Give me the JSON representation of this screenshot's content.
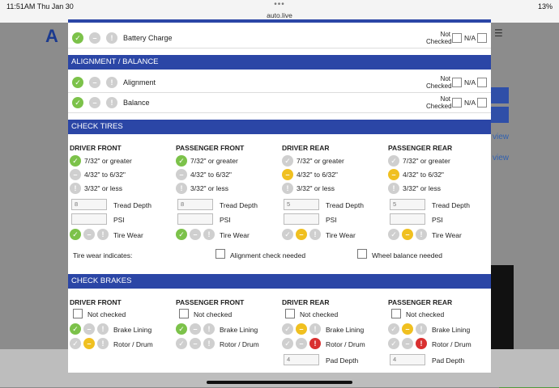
{
  "status": {
    "time": "11:51AM  Thu Jan 30",
    "url": "auto.live",
    "battery": "13%"
  },
  "background": {
    "logo": "A",
    "link1": "view",
    "link2": "view"
  },
  "battery_row": {
    "label": "Battery Charge",
    "not_checked": "Not Checked",
    "na": "N/A"
  },
  "alignment": {
    "header": "ALIGNMENT / BALANCE",
    "rows": [
      {
        "label": "Alignment",
        "not_checked": "Not Checked",
        "na": "N/A"
      },
      {
        "label": "Balance",
        "not_checked": "Not Checked",
        "na": "N/A"
      }
    ]
  },
  "tires": {
    "header": "CHECK TIRES",
    "columns": [
      {
        "title": "DRIVER FRONT",
        "selected": 0,
        "tread": "8",
        "psi": "",
        "wear": "green"
      },
      {
        "title": "PASSENGER FRONT",
        "selected": 0,
        "tread": "8",
        "psi": "",
        "wear": "green"
      },
      {
        "title": "DRIVER REAR",
        "selected": 1,
        "tread": "5",
        "psi": "",
        "wear": "yellow"
      },
      {
        "title": "PASSENGER REAR",
        "selected": 1,
        "tread": "5",
        "psi": "",
        "wear": "yellow"
      }
    ],
    "options": [
      "7/32\" or greater",
      "4/32\" to 6/32\"",
      "3/32\" or less"
    ],
    "tread_label": "Tread Depth",
    "psi_label": "PSI",
    "wear_label": "Tire Wear",
    "indicates_label": "Tire wear indicates:",
    "alignment_needed": "Alignment check needed",
    "balance_needed": "Wheel balance needed"
  },
  "brakes": {
    "header": "CHECK BRAKES",
    "columns": [
      {
        "title": "DRIVER FRONT",
        "lining": "green",
        "rotor": "yellow",
        "pad": ""
      },
      {
        "title": "PASSENGER FRONT",
        "lining": "green",
        "rotor": "none",
        "pad": ""
      },
      {
        "title": "DRIVER REAR",
        "lining": "yellow",
        "rotor": "red",
        "pad": "4"
      },
      {
        "title": "PASSENGER REAR",
        "lining": "yellow",
        "rotor": "red",
        "pad": "4"
      }
    ],
    "not_checked": "Not checked",
    "lining_label": "Brake Lining",
    "rotor_label": "Rotor / Drum",
    "pad_label": "Pad Depth"
  },
  "colors": {
    "header": "#2b46a6",
    "green": "#7cc24a",
    "yellow": "#f0c020",
    "red": "#d93030",
    "grey": "#cfcfcf"
  }
}
